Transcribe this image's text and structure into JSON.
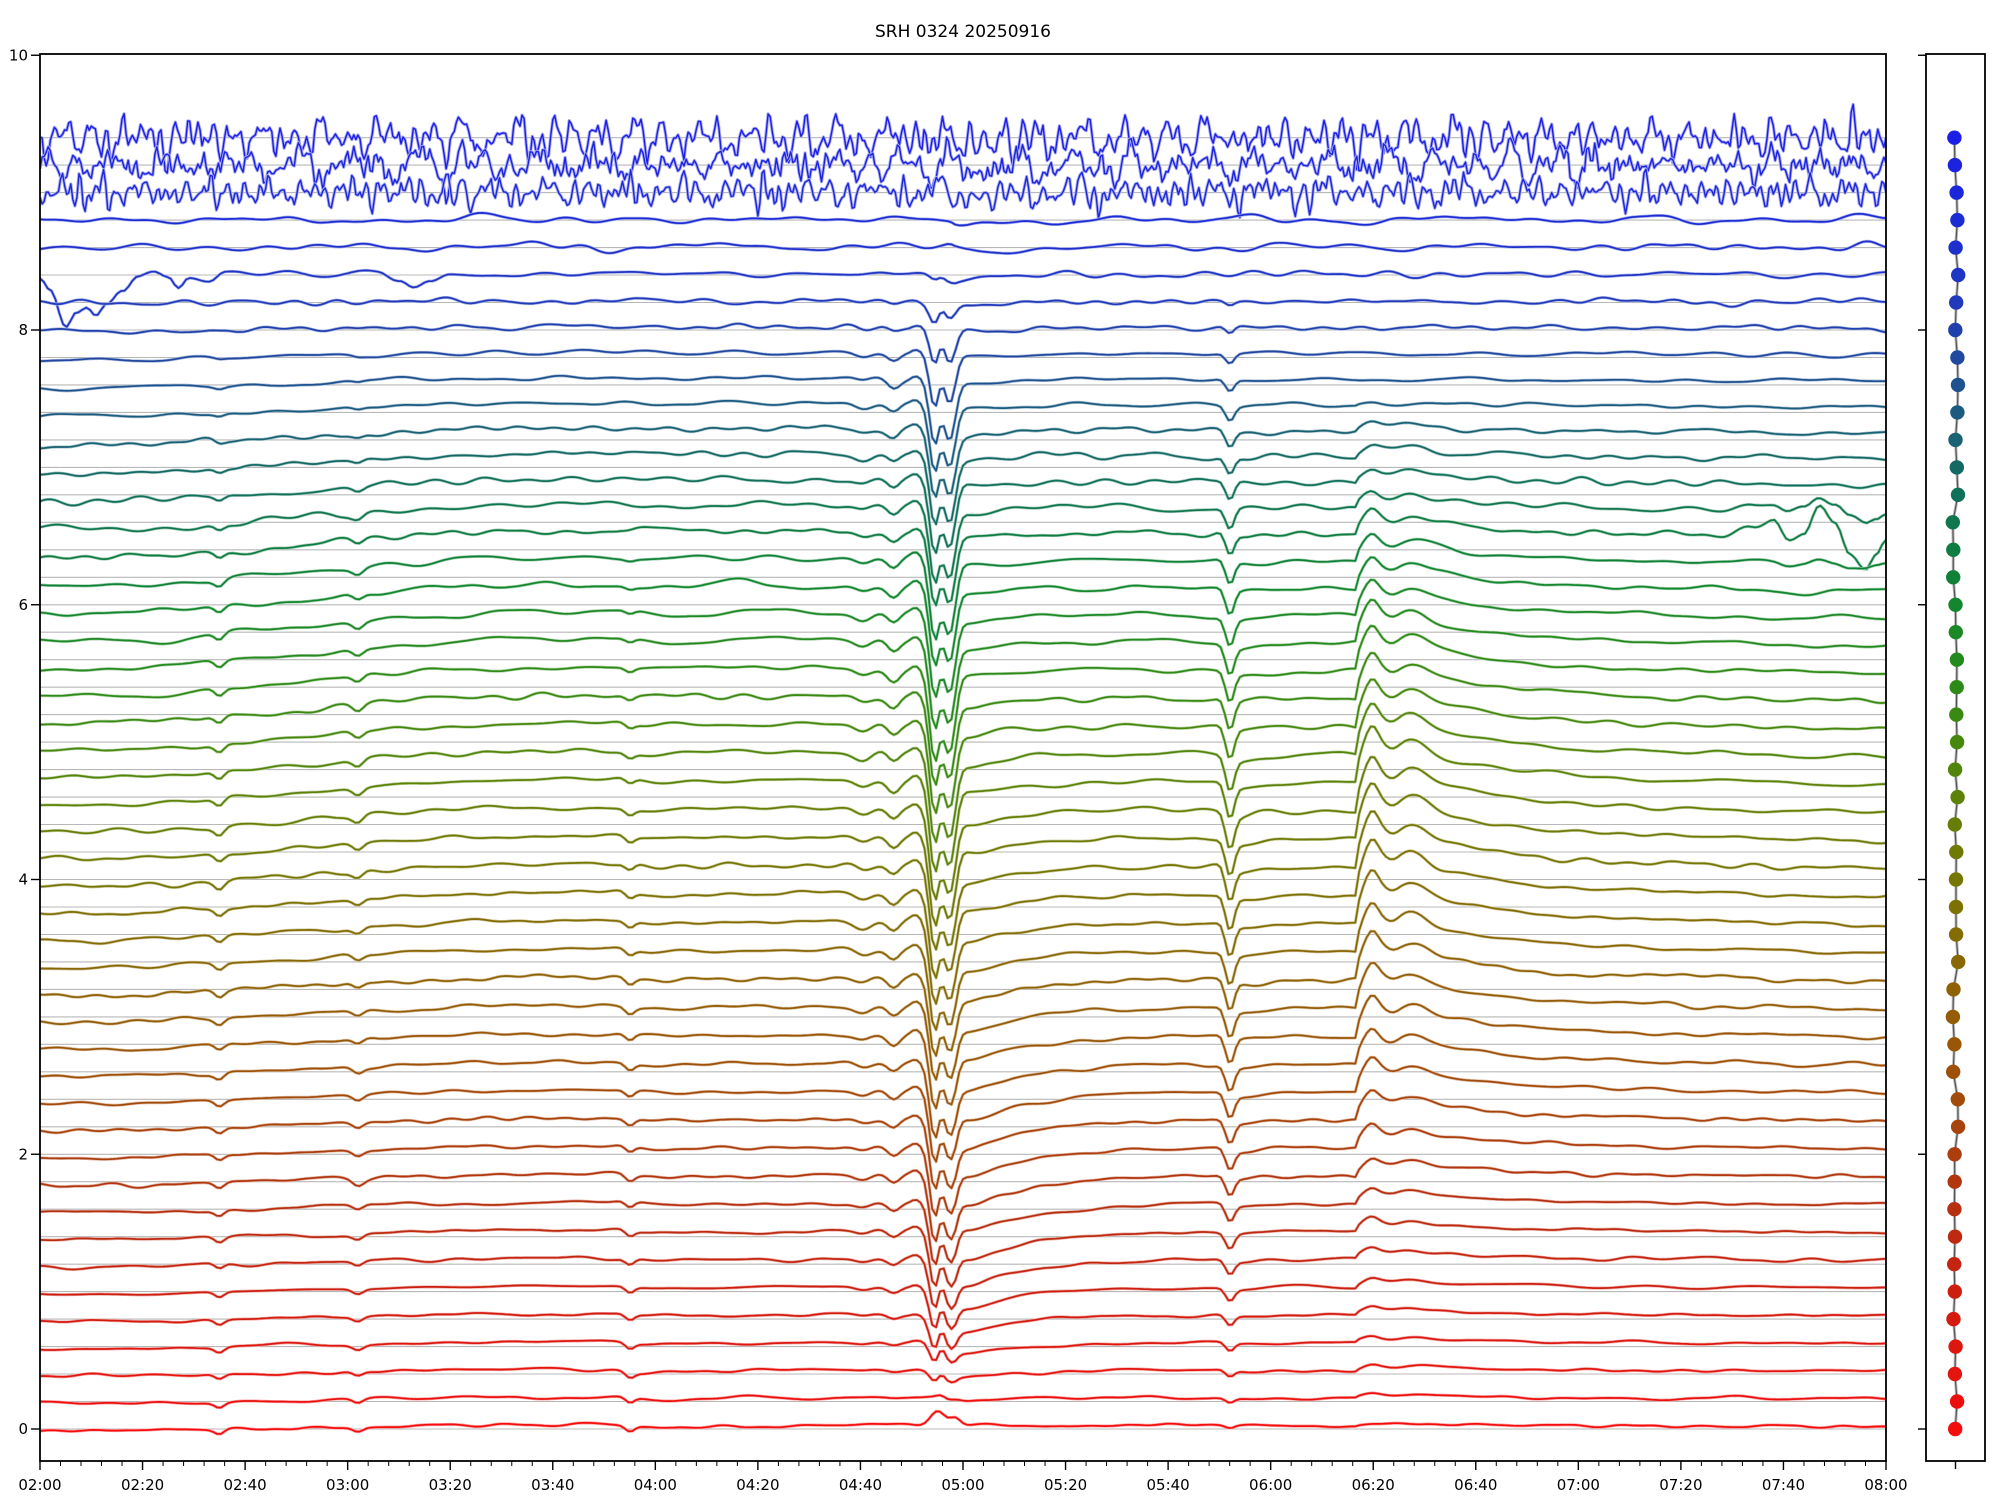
{
  "page_title": "SRH 0324 20250916",
  "chart_data": {
    "type": "line",
    "title": "SRH 0324 20250916",
    "xlabel": "",
    "ylabel": "",
    "x_axis": {
      "start_label": "02:00",
      "end_label": "08:00",
      "duration_minutes": 360,
      "major_tick_minutes": 20,
      "minor_tick_minutes": 4,
      "tick_labels": [
        "02:00",
        "02:20",
        "02:40",
        "03:00",
        "03:20",
        "03:40",
        "04:00",
        "04:20",
        "04:40",
        "05:00",
        "05:20",
        "05:40",
        "06:00",
        "06:20",
        "06:40",
        "07:00",
        "07:20",
        "07:40",
        "08:00"
      ]
    },
    "y_axis": {
      "ticks": [
        0,
        2,
        4,
        6,
        8,
        10
      ],
      "tick_labels": [
        "0",
        "2",
        "4",
        "6",
        "8",
        "10"
      ],
      "ylim": [
        -0.23,
        10.01
      ],
      "grid": false
    },
    "n_traces": 48,
    "trace_offsets": {
      "top": 9.4,
      "step": -0.2,
      "bottom": 0.0
    },
    "baseline_color": "#b8b8b8",
    "colormap_stops": [
      [
        0.0,
        "#1b1ee4"
      ],
      [
        0.06,
        "#1c2bd4"
      ],
      [
        0.12,
        "#2038bf"
      ],
      [
        0.17,
        "#20489f"
      ],
      [
        0.21,
        "#1c5a82"
      ],
      [
        0.26,
        "#136b62"
      ],
      [
        0.31,
        "#0e7a46"
      ],
      [
        0.36,
        "#12872e"
      ],
      [
        0.42,
        "#2b8a18"
      ],
      [
        0.48,
        "#4d870c"
      ],
      [
        0.54,
        "#6a7d05"
      ],
      [
        0.6,
        "#7f7004"
      ],
      [
        0.66,
        "#8f6206"
      ],
      [
        0.72,
        "#9d5108"
      ],
      [
        0.78,
        "#aa3f0c"
      ],
      [
        0.84,
        "#b92d10"
      ],
      [
        0.9,
        "#cf1d10"
      ],
      [
        1.0,
        "#f30d0d"
      ]
    ],
    "noise_sigma_profile": [
      [
        0,
        0.075
      ],
      [
        1,
        0.065
      ],
      [
        2,
        0.058
      ],
      [
        3,
        0.016
      ],
      [
        4,
        0.014
      ],
      [
        5,
        0.012
      ],
      [
        7,
        0.01
      ],
      [
        10,
        0.01
      ],
      [
        14,
        0.013
      ],
      [
        18,
        0.012
      ],
      [
        24,
        0.01
      ],
      [
        30,
        0.0085
      ],
      [
        36,
        0.007
      ],
      [
        42,
        0.0065
      ],
      [
        47,
        0.006
      ]
    ],
    "events": {
      "main_dip": {
        "description": "deep double-V absorption dip",
        "time_label": "04:54-04:57",
        "t1_min": 174.4,
        "t2_min": 177.45,
        "depth_profile": [
          [
            4,
            0
          ],
          [
            5,
            0.04
          ],
          [
            6,
            0.13
          ],
          [
            7,
            0.27
          ],
          [
            8,
            0.4
          ],
          [
            9,
            0.46
          ],
          [
            12,
            0.5
          ],
          [
            16,
            0.56
          ],
          [
            20,
            0.62
          ],
          [
            24,
            0.64
          ],
          [
            28,
            0.58
          ],
          [
            32,
            0.53
          ],
          [
            36,
            0.5
          ],
          [
            39,
            0.45
          ],
          [
            41,
            0.36
          ],
          [
            43,
            0.24
          ],
          [
            44,
            0.15
          ],
          [
            45,
            0.08
          ],
          [
            46,
            0.02
          ],
          [
            47,
            0
          ]
        ],
        "recovery_tail_profile": [
          [
            8,
            0.05
          ],
          [
            16,
            0.08
          ],
          [
            24,
            0.14
          ],
          [
            30,
            0.22
          ],
          [
            34,
            0.3
          ],
          [
            38,
            0.32
          ],
          [
            41,
            0.28
          ],
          [
            44,
            0.12
          ],
          [
            46,
            0.03
          ],
          [
            47,
            0
          ]
        ]
      },
      "dip2": {
        "description": "narrow single dip",
        "time_label": "05:52",
        "t_min": 232,
        "amp_profile": [
          [
            5,
            0
          ],
          [
            7,
            0.06
          ],
          [
            10,
            0.11
          ],
          [
            14,
            0.16
          ],
          [
            18,
            0.21
          ],
          [
            24,
            0.26
          ],
          [
            28,
            0.26
          ],
          [
            32,
            0.22
          ],
          [
            36,
            0.17
          ],
          [
            40,
            0.12
          ],
          [
            43,
            0.08
          ],
          [
            45,
            0.05
          ],
          [
            47,
            0.02
          ]
        ]
      },
      "burst": {
        "description": "impulsive rise with stepped decay",
        "time_label": "06:18",
        "t_start_min": 256.5,
        "amp_profile": [
          [
            9,
            0
          ],
          [
            11,
            0.05
          ],
          [
            14,
            0.14
          ],
          [
            17,
            0.24
          ],
          [
            20,
            0.32
          ],
          [
            24,
            0.4
          ],
          [
            28,
            0.4
          ],
          [
            32,
            0.32
          ],
          [
            36,
            0.22
          ],
          [
            38,
            0.14
          ],
          [
            42,
            0.07
          ],
          [
            45,
            0.04
          ],
          [
            47,
            0.02
          ]
        ]
      },
      "slow_hump": {
        "description": "gradual rise 02:00-03:30 then plateau and slow decline",
        "amp_profile": [
          [
            0,
            0
          ],
          [
            6,
            0.01
          ],
          [
            9,
            0.05
          ],
          [
            12,
            0.1
          ],
          [
            15,
            0.14
          ],
          [
            19,
            0.15
          ],
          [
            24,
            0.13
          ],
          [
            29,
            0.1
          ],
          [
            34,
            0.07
          ],
          [
            39,
            0.05
          ],
          [
            44,
            0.035
          ],
          [
            47,
            0.03
          ]
        ]
      },
      "small_dips_early": {
        "times_min": [
          35,
          62
        ],
        "time_labels": [
          "02:35",
          "03:02"
        ],
        "amp_profile": [
          [
            6,
            0
          ],
          [
            10,
            0.02
          ],
          [
            14,
            0.04
          ],
          [
            18,
            0.055
          ],
          [
            24,
            0.06
          ],
          [
            30,
            0.05
          ],
          [
            36,
            0.045
          ],
          [
            42,
            0.04
          ],
          [
            47,
            0.035
          ]
        ]
      },
      "small_dip_0355": {
        "t_min": 115,
        "time_label": "03:55",
        "amp_profile": [
          [
            14,
            0
          ],
          [
            18,
            0.03
          ],
          [
            26,
            0.05
          ],
          [
            34,
            0.055
          ],
          [
            40,
            0.05
          ],
          [
            47,
            0.045
          ]
        ]
      },
      "start_excursion": {
        "description": "large negative excursion at start of 6th trace (offset 8.4)",
        "trace_index": 5,
        "anchors_t_v": [
          [
            0,
            -0.03
          ],
          [
            2,
            -0.12
          ],
          [
            5,
            -0.37
          ],
          [
            7,
            -0.25
          ],
          [
            9,
            -0.22
          ],
          [
            11,
            -0.3
          ],
          [
            13,
            -0.22
          ],
          [
            16,
            -0.1
          ],
          [
            19,
            0.01
          ],
          [
            22,
            0.03
          ],
          [
            25,
            -0.01
          ],
          [
            27,
            -0.09
          ],
          [
            29,
            -0.02
          ],
          [
            33,
            -0.05
          ],
          [
            36,
            0.01
          ],
          [
            45,
            0.02
          ],
          [
            55,
            0.0
          ],
          [
            66,
            0.01
          ],
          [
            70,
            -0.05
          ],
          [
            73,
            -0.11
          ],
          [
            76,
            -0.06
          ],
          [
            80,
            0.0
          ],
          [
            360,
            0.0
          ]
        ]
      },
      "end_oscillation": {
        "description": "large wiggles near 07:40-08:00 on green traces",
        "base_amp": 0.23,
        "anchors_t_v": [
          [
            328,
            0
          ],
          [
            334,
            0.3
          ],
          [
            338,
            0.55
          ],
          [
            341,
            -0.1
          ],
          [
            344,
            0.15
          ],
          [
            347,
            1.0
          ],
          [
            350,
            0.45
          ],
          [
            353,
            -0.55
          ],
          [
            356,
            -1.0
          ],
          [
            358,
            -0.55
          ],
          [
            360,
            -0.1
          ]
        ],
        "amp_profile": [
          [
            13,
            0
          ],
          [
            14,
            0.4
          ],
          [
            15,
            1.0
          ],
          [
            16,
            0.12
          ],
          [
            17,
            0
          ]
        ]
      },
      "bottom_bump": {
        "description": "small positive bump at 04:55 on lowest traces",
        "t_min": 175,
        "amp_profile": [
          [
            44,
            0
          ],
          [
            45,
            0.01
          ],
          [
            46,
            0.045
          ],
          [
            47,
            0.11
          ]
        ]
      }
    },
    "side_panel": {
      "description": "channel markers, one dot per trace at its offset level",
      "n_markers": 48,
      "marker": "filled-circle",
      "marker_radius_px": 7.2,
      "line_color": "#555555",
      "halo_color": "#bbbbbb",
      "y_ticks": [
        0,
        2,
        4,
        6,
        8,
        10
      ],
      "x_tick_count": 1
    }
  }
}
